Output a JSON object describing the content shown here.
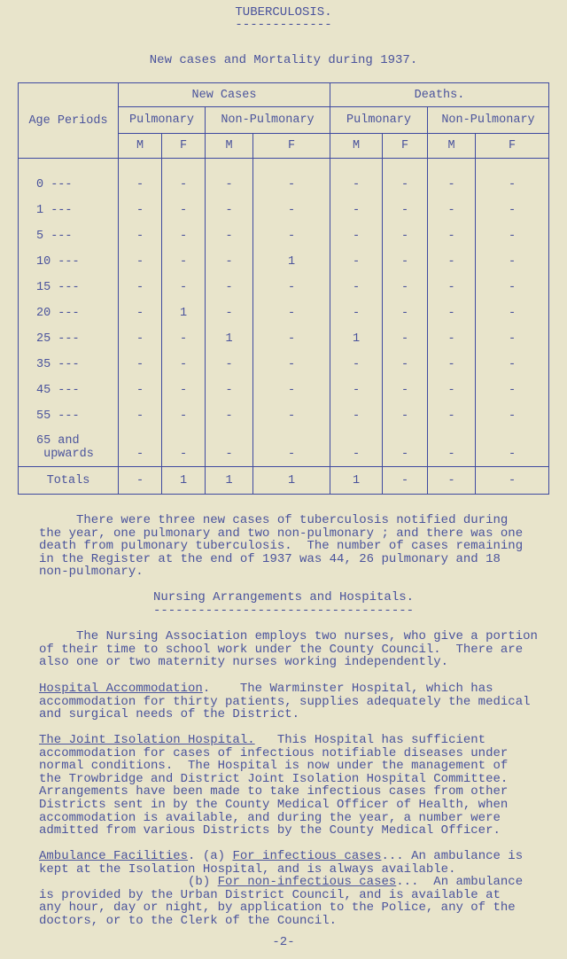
{
  "title": "TUBERCULOSIS.",
  "title_rule": "-------------",
  "subtitle": "New cases and Mortality during 1937.",
  "table": {
    "age_header": "Age Periods",
    "group_headers": [
      "New Cases",
      "Deaths."
    ],
    "sub_headers": [
      "Pulmonary",
      "Non-Pulmonary",
      "Pulmonary",
      "Non-Pulmonary"
    ],
    "sex_headers": [
      "M",
      "F",
      "M",
      "F",
      "M",
      "F",
      "M",
      "F"
    ],
    "rows": [
      {
        "age": "0 ---",
        "values": [
          "-",
          "-",
          "-",
          "-",
          "-",
          "-",
          "-",
          "-"
        ]
      },
      {
        "age": "1 ---",
        "values": [
          "-",
          "-",
          "-",
          "-",
          "-",
          "-",
          "-",
          "-"
        ]
      },
      {
        "age": "5 ---",
        "values": [
          "-",
          "-",
          "-",
          "-",
          "-",
          "-",
          "-",
          "-"
        ]
      },
      {
        "age": "10 ---",
        "values": [
          "-",
          "-",
          "-",
          "1",
          "-",
          "-",
          "-",
          "-"
        ]
      },
      {
        "age": "15 ---",
        "values": [
          "-",
          "-",
          "-",
          "-",
          "-",
          "-",
          "-",
          "-"
        ]
      },
      {
        "age": "20 ---",
        "values": [
          "-",
          "1",
          "-",
          "-",
          "-",
          "-",
          "-",
          "-"
        ]
      },
      {
        "age": "25 ---",
        "values": [
          "-",
          "-",
          "1",
          "-",
          "1",
          "-",
          "-",
          "-"
        ]
      },
      {
        "age": "35 ---",
        "values": [
          "-",
          "-",
          "-",
          "-",
          "-",
          "-",
          "-",
          "-"
        ]
      },
      {
        "age": "45 ---",
        "values": [
          "-",
          "-",
          "-",
          "-",
          "-",
          "-",
          "-",
          "-"
        ]
      },
      {
        "age": "55 ---",
        "values": [
          "-",
          "-",
          "-",
          "-",
          "-",
          "-",
          "-",
          "-"
        ]
      },
      {
        "age": "65 and\n upwards",
        "values": [
          "-",
          "-",
          "-",
          "-",
          "-",
          "-",
          "-",
          "-"
        ]
      }
    ],
    "totals": {
      "label": "Totals",
      "values": [
        "-",
        "1",
        "1",
        "1",
        "1",
        "-",
        "-",
        "-"
      ]
    }
  },
  "para1": [
    "     There were three new cases of tuberculosis notified during",
    "the year, one pulmonary and two non-pulmonary ; and there was one",
    "death from pulmonary tuberculosis.  The number of cases remaining",
    "in the Register at the end of 1937 was 44, 26 pulmonary and 18",
    "non-pulmonary."
  ],
  "section_heading": "Nursing Arrangements and Hospitals.",
  "section_rule": "-----------------------------------",
  "para2": [
    "     The Nursing Association employs two nurses, who give a portion",
    "of their time to school work under the County Council.  There are",
    "also one or two maternity nurses working independently."
  ],
  "hospital": {
    "heading": "Hospital Accommodation",
    "first_rest": ".    The Warminster Hospital, which has",
    "lines": [
      "accommodation for thirty patients, supplies adequately the medical",
      "and surgical needs of the District."
    ]
  },
  "isolation": {
    "heading": "The Joint Isolation Hospital.",
    "first_rest": "   This Hospital has sufficient",
    "lines": [
      "accommodation for cases of infectious notifiable diseases under",
      "normal conditions.  The Hospital is now under the management of",
      "the Trowbridge and District Joint Isolation Hospital Committee.",
      "Arrangements have been made to take infectious cases from other",
      "Districts sent in by the County Medical Officer of Health, when",
      "accommodation is available, and during the year, a number were",
      "admitted from various Districts by the County Medical Officer."
    ]
  },
  "ambulance": {
    "heading": "Ambulance Facilities",
    "a_prefix": ". (a) ",
    "a_heading": "For infectious cases",
    "a_rest": "... An ambulance is",
    "a_line2": "kept at the Isolation Hospital, and is always available.",
    "b_prefix": "                    (b) ",
    "b_heading": "For non-infectious cases",
    "b_rest": "...  An ambulance",
    "lines": [
      "is provided by the Urban District Council, and is available at",
      "any hour, day or night, by application to the Police, any of the",
      "doctors, or to the Clerk of the Council."
    ]
  },
  "page_number": "-2-"
}
